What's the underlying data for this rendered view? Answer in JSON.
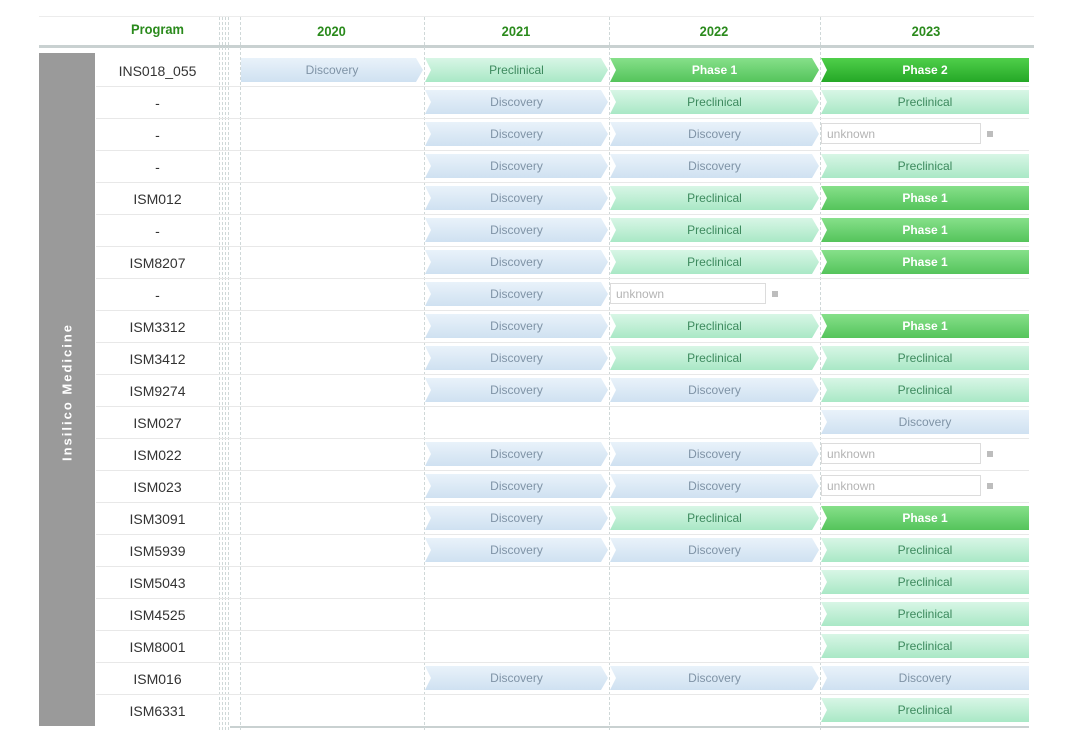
{
  "chart_data": {
    "type": "table",
    "header_program": "Program",
    "years": [
      "2020",
      "2021",
      "2022",
      "2023"
    ],
    "company": "Insilico Medicine",
    "rows": [
      {
        "program": "INS018_055",
        "stages": [
          "Discovery",
          "Preclinical",
          "Phase 1",
          "Phase 2"
        ]
      },
      {
        "program": "-",
        "stages": [
          null,
          "Discovery",
          "Preclinical",
          "Preclinical"
        ]
      },
      {
        "program": "-",
        "stages": [
          null,
          "Discovery",
          "Discovery",
          "unknown"
        ]
      },
      {
        "program": "-",
        "stages": [
          null,
          "Discovery",
          "Discovery",
          "Preclinical"
        ]
      },
      {
        "program": "ISM012",
        "stages": [
          null,
          "Discovery",
          "Preclinical",
          "Phase 1"
        ]
      },
      {
        "program": "-",
        "stages": [
          null,
          "Discovery",
          "Preclinical",
          "Phase 1"
        ]
      },
      {
        "program": "ISM8207",
        "stages": [
          null,
          "Discovery",
          "Preclinical",
          "Phase 1"
        ]
      },
      {
        "program": "-",
        "stages": [
          null,
          "Discovery",
          "unknown",
          null
        ]
      },
      {
        "program": "ISM3312",
        "stages": [
          null,
          "Discovery",
          "Preclinical",
          "Phase 1"
        ]
      },
      {
        "program": "ISM3412",
        "stages": [
          null,
          "Discovery",
          "Preclinical",
          "Preclinical"
        ]
      },
      {
        "program": "ISM9274",
        "stages": [
          null,
          "Discovery",
          "Discovery",
          "Preclinical"
        ]
      },
      {
        "program": "ISM027",
        "stages": [
          null,
          null,
          null,
          "Discovery"
        ]
      },
      {
        "program": "ISM022",
        "stages": [
          null,
          "Discovery",
          "Discovery",
          "unknown"
        ]
      },
      {
        "program": "ISM023",
        "stages": [
          null,
          "Discovery",
          "Discovery",
          "unknown"
        ]
      },
      {
        "program": "ISM3091",
        "stages": [
          null,
          "Discovery",
          "Preclinical",
          "Phase 1"
        ]
      },
      {
        "program": "ISM5939",
        "stages": [
          null,
          "Discovery",
          "Discovery",
          "Preclinical"
        ]
      },
      {
        "program": "ISM5043",
        "stages": [
          null,
          null,
          null,
          "Preclinical"
        ]
      },
      {
        "program": "ISM4525",
        "stages": [
          null,
          null,
          null,
          "Preclinical"
        ]
      },
      {
        "program": "ISM8001",
        "stages": [
          null,
          null,
          null,
          "Preclinical"
        ]
      },
      {
        "program": "ISM016",
        "stages": [
          null,
          "Discovery",
          "Discovery",
          "Discovery"
        ]
      },
      {
        "program": "ISM6331",
        "stages": [
          null,
          null,
          null,
          "Preclinical"
        ]
      }
    ],
    "stage_colors": {
      "Discovery": "#d9e8f5",
      "Preclinical": "#bdeed3",
      "Phase 1": "#6dd372",
      "Phase 2": "#35b936",
      "unknown": "#ffffff"
    },
    "header_color": "#2a8a1c",
    "company_band_color": "#9a9a9a"
  }
}
